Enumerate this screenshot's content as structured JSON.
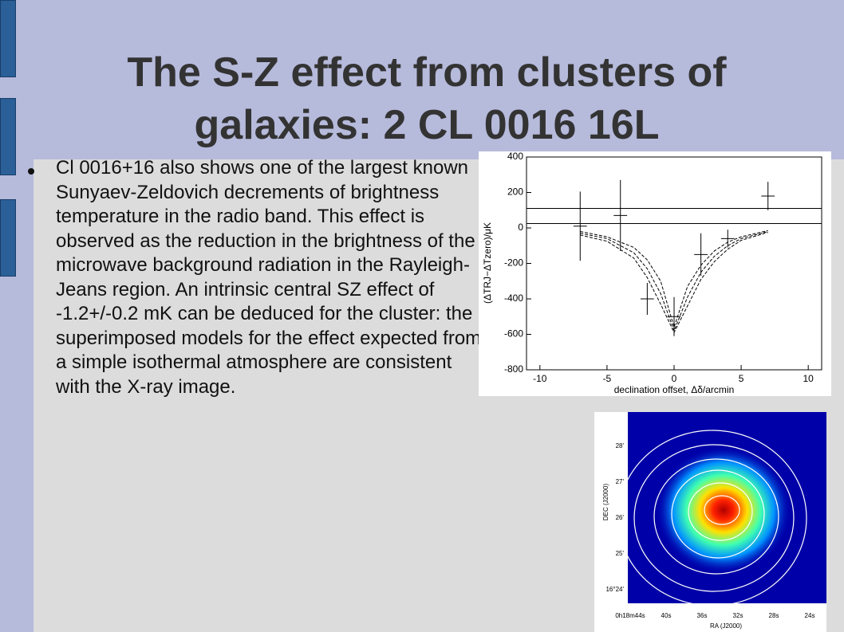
{
  "slide": {
    "title": "The S-Z effect from clusters of galaxies: 2 CL 0016 16L",
    "bullet": "Cl 0016+16 also shows one of the largest known Sunyaev-Zeldovich decrements of brightness temperature in the radio band. This effect is observed as the reduction in the brightness of the microwave background radiation in the Rayleigh-Jeans region. An intrinsic central SZ effect of -1.2+/-0.2 mK can be deduced for the cluster: the superimposed models for the effect expected from a simple isothermal atmosphere are consistent with the X-ray image."
  },
  "chart_data": {
    "type": "errorbar",
    "x_label": "declination offset, Δδ/arcmin",
    "y_label": "(ΔTRJ−ΔTzero)/μK",
    "xlim": [
      -11,
      11
    ],
    "ylim": [
      -800,
      400
    ],
    "xticks": [
      -10,
      -5,
      0,
      5,
      10
    ],
    "yticks": [
      -800,
      -600,
      -400,
      -200,
      0,
      200,
      400
    ],
    "points": {
      "x": [
        -7,
        -4,
        -2,
        0,
        2,
        4,
        7
      ],
      "y": [
        10,
        70,
        -400,
        -500,
        -150,
        -60,
        180
      ],
      "yerr": [
        195,
        200,
        90,
        110,
        120,
        50,
        80
      ],
      "xerr": [
        0.5,
        0.5,
        0.5,
        0.5,
        0.5,
        0.5,
        0.5
      ]
    },
    "hlines": [
      110,
      25
    ],
    "models": [
      {
        "x": [
          -7,
          -5,
          -3,
          -2,
          -1,
          0,
          1,
          2,
          3,
          4,
          5,
          7
        ],
        "y": [
          -20,
          -50,
          -110,
          -180,
          -300,
          -560,
          -330,
          -210,
          -130,
          -80,
          -50,
          -15
        ]
      },
      {
        "x": [
          -7,
          -5,
          -3,
          -2,
          -1,
          0,
          1,
          2,
          3,
          4,
          5,
          7
        ],
        "y": [
          -30,
          -60,
          -140,
          -230,
          -370,
          -580,
          -390,
          -250,
          -160,
          -100,
          -60,
          -20
        ]
      },
      {
        "x": [
          -7,
          -5,
          -3,
          -2,
          -1,
          0,
          1,
          2,
          3,
          4,
          5,
          7
        ],
        "y": [
          -40,
          -75,
          -170,
          -280,
          -430,
          -590,
          -440,
          -290,
          -190,
          -120,
          -70,
          -25
        ]
      }
    ]
  },
  "xray_image": {
    "y_labels": [
      "28'",
      "27'",
      "26'",
      "25'",
      "16°24'"
    ],
    "y_title": "DEC (J2000)",
    "x_labels": [
      "0h18m44s",
      "40s",
      "36s",
      "32s",
      "28s",
      "24s"
    ],
    "x_title": "RA (J2000)"
  }
}
